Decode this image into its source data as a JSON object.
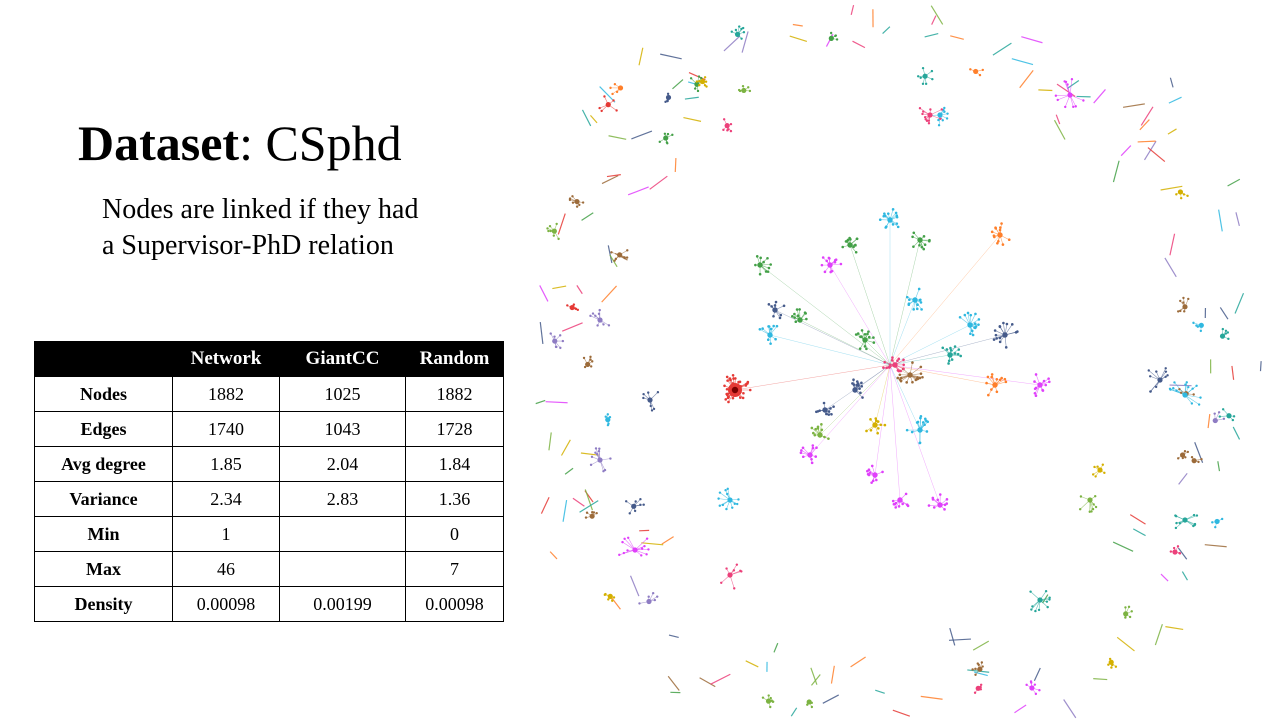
{
  "slide": {
    "title_bold": "Dataset",
    "title_rest": ": CSphd",
    "subtitle": "Nodes are linked if  they had a Supervisor-PhD relation"
  },
  "table": {
    "columns": [
      "",
      "Network",
      "GiantCC",
      "Random"
    ],
    "rows": [
      {
        "label": "Nodes",
        "network": "1882",
        "giantcc": "1025",
        "random": "1882"
      },
      {
        "label": "Edges",
        "network": "1740",
        "giantcc": "1043",
        "random": "1728"
      },
      {
        "label": "Avg degree",
        "network": "1.85",
        "giantcc": "2.04",
        "random": "1.84"
      },
      {
        "label": "Variance",
        "network": "2.34",
        "giantcc": "2.83",
        "random": "1.36"
      },
      {
        "label": "Min",
        "network": "1",
        "giantcc": "",
        "random": "0"
      },
      {
        "label": "Max",
        "network": "46",
        "giantcc": "",
        "random": "7"
      },
      {
        "label": "Density",
        "network": "0.00098",
        "giantcc": "0.00199",
        "random": "0.00098"
      }
    ]
  },
  "network_colors": [
    "#e53935",
    "#2fb8e0",
    "#43a047",
    "#e040fb",
    "#ff7f2a",
    "#455a8a",
    "#9c6b3a",
    "#26a69a",
    "#8e7cc3",
    "#d4b000",
    "#7cb342",
    "#ec407a"
  ]
}
